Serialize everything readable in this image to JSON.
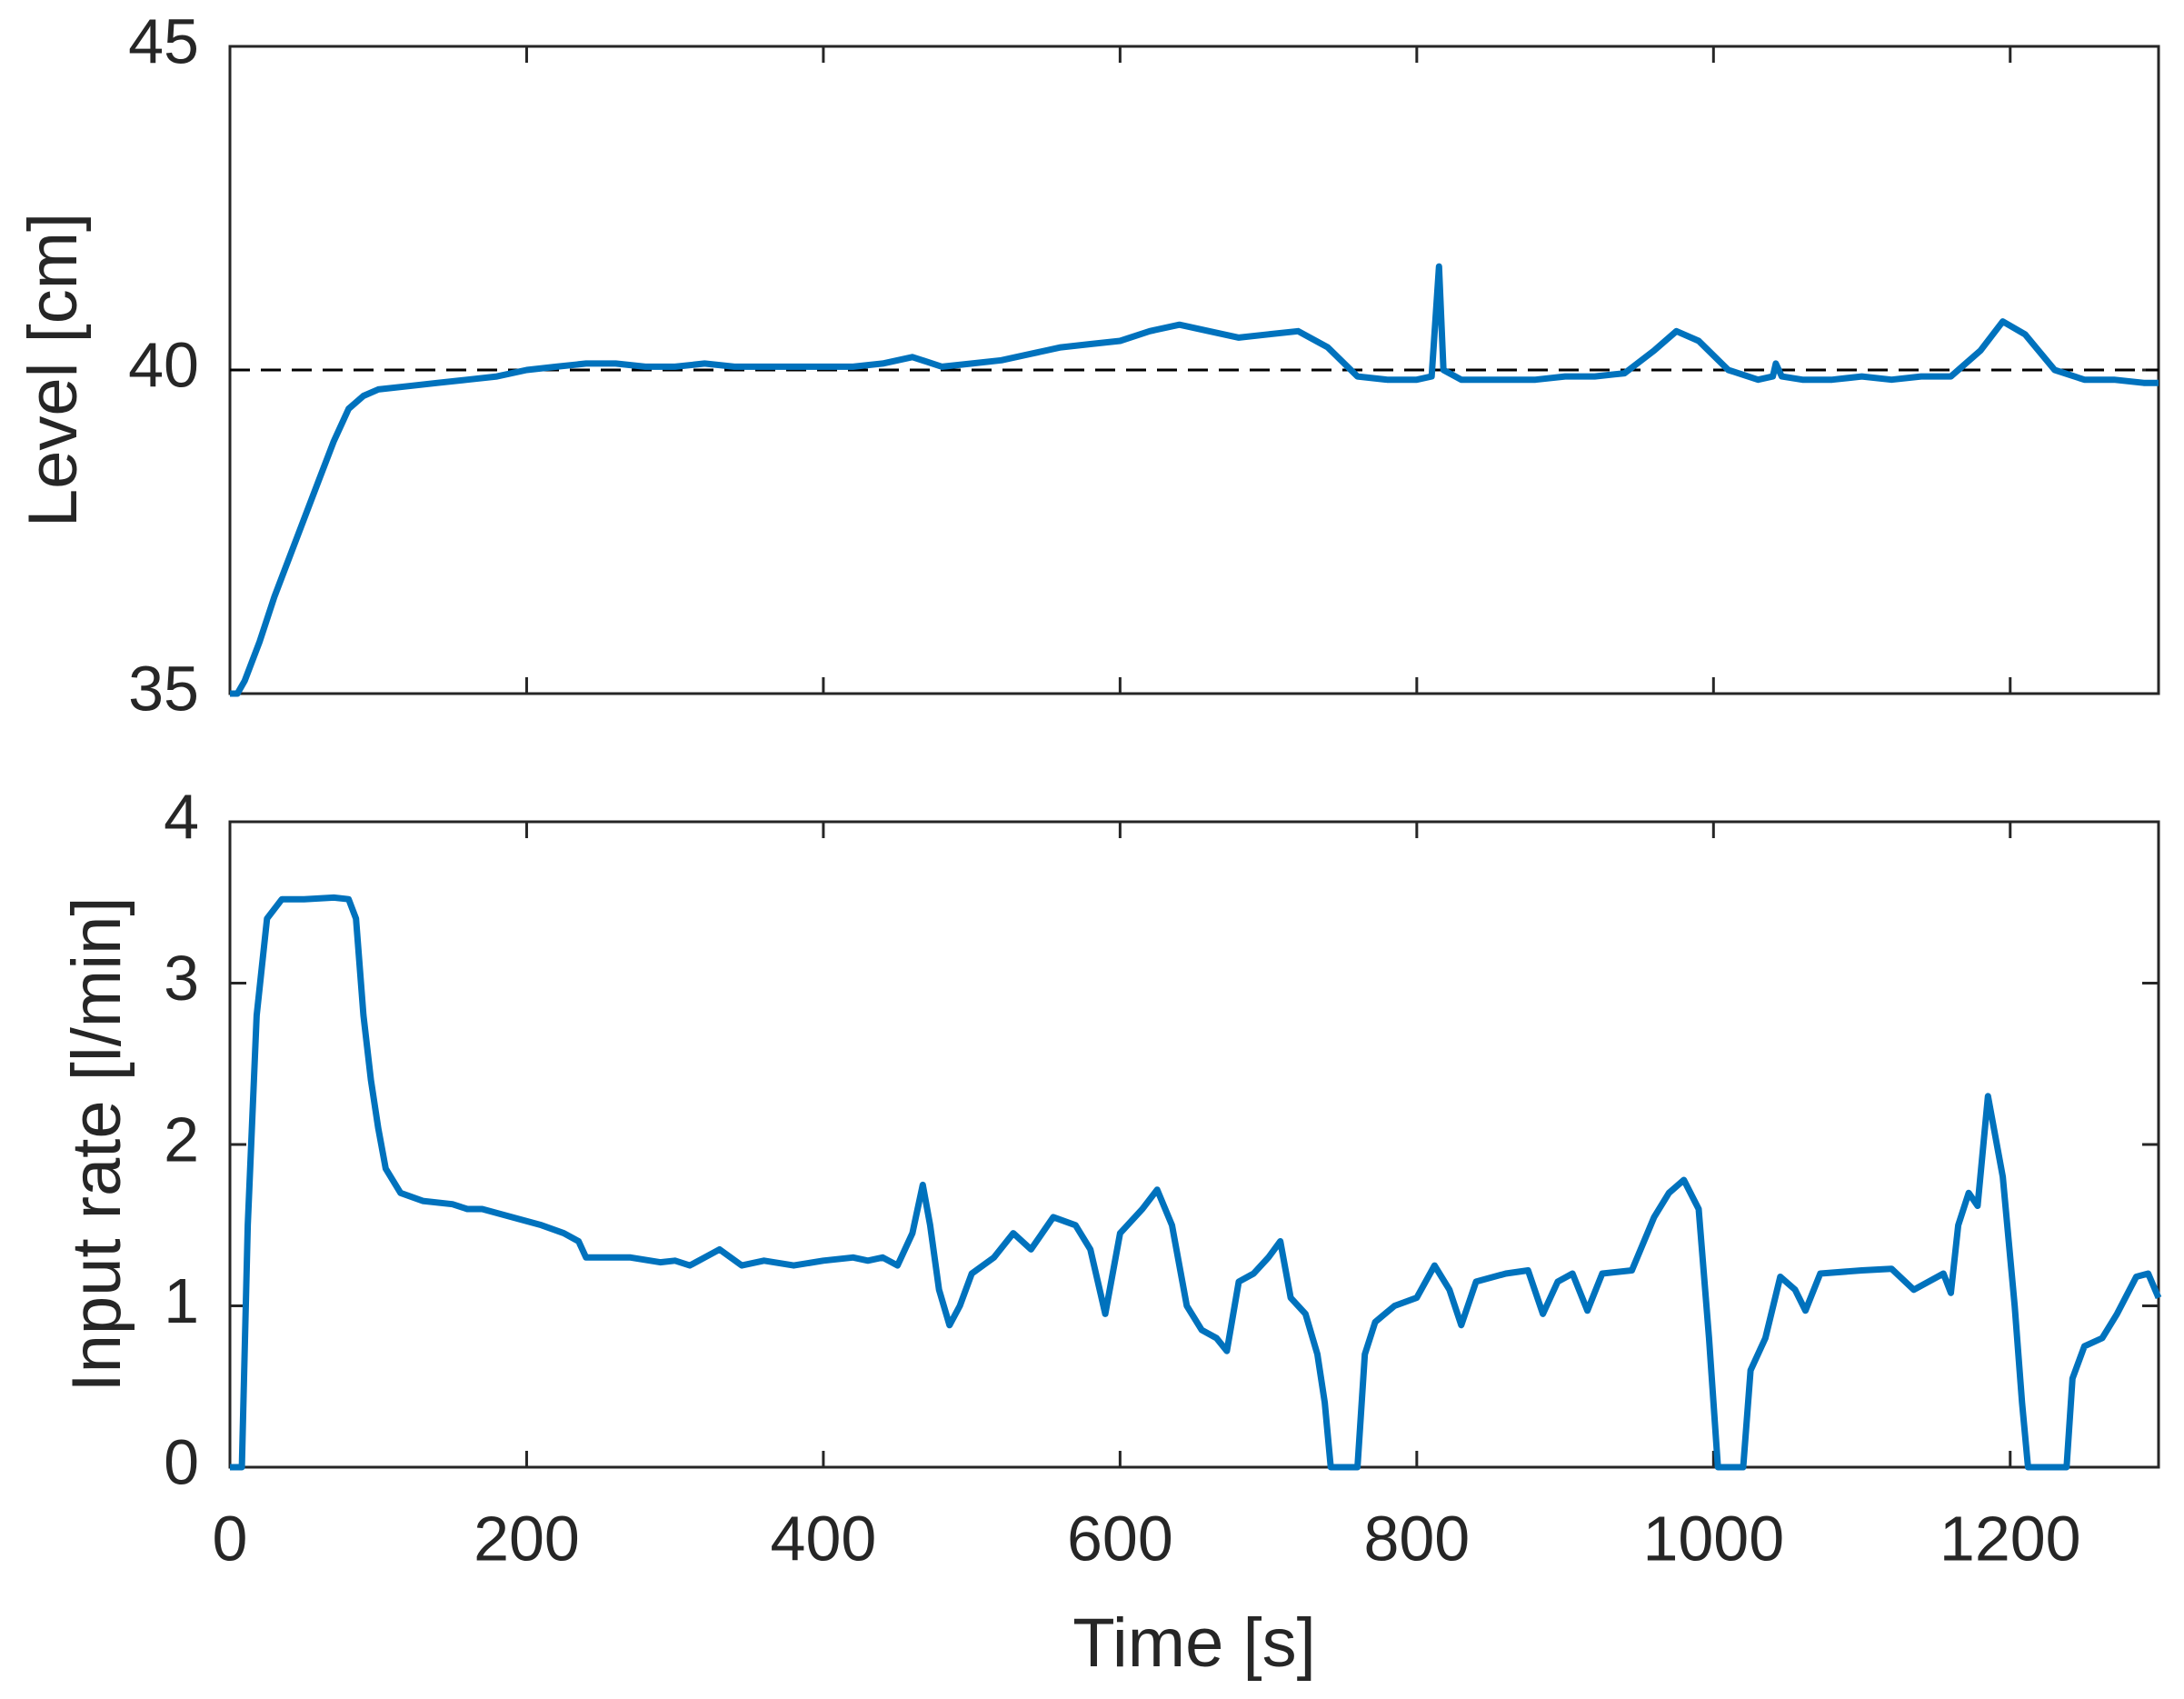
{
  "chart_data": [
    {
      "type": "line",
      "y_label": "Level [cm]",
      "x": [
        0,
        5,
        10,
        20,
        30,
        40,
        50,
        60,
        70,
        80,
        90,
        100,
        120,
        140,
        160,
        180,
        200,
        220,
        240,
        260,
        280,
        300,
        320,
        340,
        360,
        380,
        400,
        420,
        440,
        460,
        480,
        500,
        520,
        540,
        560,
        580,
        600,
        620,
        640,
        660,
        680,
        700,
        720,
        740,
        760,
        780,
        800,
        810,
        815,
        818,
        830,
        860,
        880,
        900,
        920,
        940,
        960,
        975,
        990,
        1010,
        1030,
        1040,
        1042,
        1046,
        1060,
        1080,
        1100,
        1120,
        1140,
        1160,
        1180,
        1195,
        1210,
        1230,
        1250,
        1270,
        1290,
        1300
      ],
      "series": [
        {
          "color": "#0072bd",
          "values": [
            35,
            35,
            35.2,
            35.8,
            36.5,
            37.1,
            37.7,
            38.3,
            38.9,
            39.4,
            39.6,
            39.7,
            39.75,
            39.8,
            39.85,
            39.9,
            40.0,
            40.05,
            40.1,
            40.1,
            40.05,
            40.05,
            40.1,
            40.05,
            40.05,
            40.05,
            40.05,
            40.05,
            40.1,
            40.2,
            40.05,
            40.1,
            40.15,
            40.25,
            40.35,
            40.4,
            40.45,
            40.6,
            40.7,
            40.6,
            40.5,
            40.55,
            40.6,
            40.35,
            39.9,
            39.85,
            39.85,
            39.9,
            41.6,
            40.0,
            39.85,
            39.85,
            39.85,
            39.9,
            39.9,
            39.95,
            40.3,
            40.6,
            40.45,
            40.0,
            39.85,
            39.9,
            40.1,
            39.9,
            39.85,
            39.85,
            39.9,
            39.85,
            39.9,
            39.9,
            40.3,
            40.75,
            40.55,
            40.0,
            39.85,
            39.85,
            39.8,
            39.8
          ]
        }
      ],
      "hline": 40,
      "xlim": [
        0,
        1300
      ],
      "xticks": [
        0,
        200,
        400,
        600,
        800,
        1000,
        1200
      ],
      "ylim": [
        35,
        45
      ],
      "yticks": [
        35,
        40,
        45
      ]
    },
    {
      "type": "line",
      "y_label": "Input rate [l/min]",
      "x_label": "Time [s]",
      "x": [
        0,
        8,
        12,
        18,
        25,
        35,
        50,
        70,
        80,
        85,
        90,
        95,
        100,
        105,
        115,
        130,
        150,
        160,
        170,
        190,
        210,
        225,
        235,
        240,
        250,
        270,
        290,
        300,
        310,
        320,
        330,
        345,
        360,
        380,
        400,
        420,
        430,
        440,
        450,
        460,
        467,
        472,
        478,
        485,
        492,
        500,
        515,
        528,
        540,
        555,
        570,
        580,
        590,
        600,
        615,
        625,
        635,
        645,
        655,
        665,
        672,
        680,
        690,
        700,
        708,
        715,
        725,
        733,
        738,
        742,
        760,
        765,
        772,
        785,
        800,
        812,
        822,
        830,
        840,
        860,
        875,
        885,
        895,
        905,
        915,
        925,
        945,
        960,
        970,
        980,
        990,
        997,
        1003,
        1020,
        1025,
        1035,
        1045,
        1055,
        1062,
        1072,
        1100,
        1120,
        1135,
        1155,
        1160,
        1165,
        1172,
        1178,
        1185,
        1195,
        1203,
        1208,
        1212,
        1238,
        1242,
        1250,
        1262,
        1272,
        1285,
        1293,
        1300
      ],
      "series": [
        {
          "color": "#0072bd",
          "values": [
            0,
            0,
            1.5,
            2.8,
            3.4,
            3.52,
            3.52,
            3.53,
            3.52,
            3.4,
            2.8,
            2.4,
            2.1,
            1.85,
            1.7,
            1.65,
            1.63,
            1.6,
            1.6,
            1.55,
            1.5,
            1.45,
            1.4,
            1.3,
            1.3,
            1.3,
            1.27,
            1.28,
            1.25,
            1.3,
            1.35,
            1.25,
            1.28,
            1.25,
            1.28,
            1.3,
            1.28,
            1.3,
            1.25,
            1.45,
            1.75,
            1.5,
            1.1,
            0.88,
            1.0,
            1.2,
            1.3,
            1.45,
            1.35,
            1.55,
            1.5,
            1.35,
            0.95,
            1.45,
            1.6,
            1.72,
            1.5,
            1.0,
            0.85,
            0.8,
            0.72,
            1.15,
            1.2,
            1.3,
            1.4,
            1.05,
            0.95,
            0.7,
            0.4,
            0,
            0,
            0.7,
            0.9,
            1.0,
            1.05,
            1.25,
            1.1,
            0.88,
            1.15,
            1.2,
            1.22,
            0.95,
            1.15,
            1.2,
            0.97,
            1.2,
            1.22,
            1.55,
            1.7,
            1.78,
            1.6,
            0.8,
            0,
            0,
            0.6,
            0.8,
            1.18,
            1.1,
            0.97,
            1.2,
            1.22,
            1.23,
            1.1,
            1.2,
            1.08,
            1.5,
            1.7,
            1.62,
            2.3,
            1.8,
            1.0,
            0.4,
            0,
            0,
            0.55,
            0.75,
            0.8,
            0.95,
            1.18,
            1.2,
            1.05
          ]
        }
      ],
      "xlim": [
        0,
        1300
      ],
      "xticks": [
        0,
        200,
        400,
        600,
        800,
        1000,
        1200
      ],
      "ylim": [
        0,
        4
      ],
      "yticks": [
        0,
        1,
        2,
        3,
        4
      ]
    }
  ]
}
